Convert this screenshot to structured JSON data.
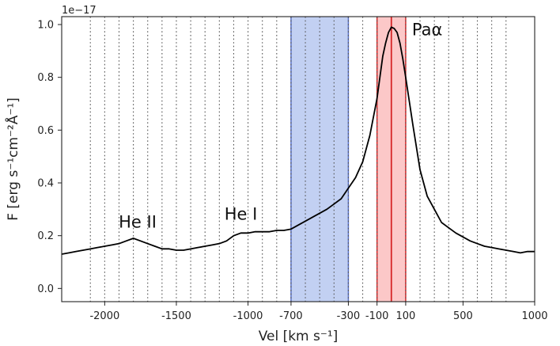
{
  "chart_data": {
    "type": "line",
    "xlabel": "Vel [km s⁻¹]",
    "ylabel": "F [erg s⁻¹cm⁻²Å⁻¹]",
    "offset_text": "1e−17",
    "xlim": [
      -2300,
      1000
    ],
    "ylim": [
      -0.05,
      1.03
    ],
    "x_ticks": [
      -2000,
      -1500,
      -1000,
      -700,
      -300,
      -100,
      100,
      500,
      1000
    ],
    "x_tick_labels": [
      "-2000",
      "-1500",
      "-1000",
      "-700",
      "-300",
      "-100",
      "100",
      "500",
      "1000"
    ],
    "y_ticks": [
      0.0,
      0.2,
      0.4,
      0.6,
      0.8,
      1.0
    ],
    "y_tick_labels": [
      "0.0",
      "0.2",
      "0.4",
      "0.6",
      "0.8",
      "1.0"
    ],
    "grid": "vertical dotted lines every 100 km/s from -2100 to 800",
    "grid_lines_x": [
      -2100,
      -2000,
      -1900,
      -1800,
      -1700,
      -1600,
      -1500,
      -1400,
      -1300,
      -1200,
      -1100,
      -1000,
      -900,
      -800,
      -700,
      -600,
      -500,
      -400,
      -300,
      -200,
      -100,
      0,
      100,
      200,
      300,
      400,
      500,
      600,
      700,
      800
    ],
    "shaded_regions": [
      {
        "x": [
          -700,
          -300
        ],
        "color": "#c2d0f2",
        "edge_color": "#5a72c8"
      },
      {
        "x": [
          -100,
          100
        ],
        "color": "#fcc8c8",
        "edge_color": "#d62728"
      }
    ],
    "center_line": {
      "x": 0,
      "color": "#d62728"
    },
    "annotations": [
      {
        "text": "He II",
        "x": -1770,
        "y": 0.23
      },
      {
        "text": "He I",
        "x": -1050,
        "y": 0.26
      },
      {
        "text": "Paα",
        "x": 250,
        "y": 0.96
      }
    ],
    "series": [
      {
        "color": "#000000",
        "x": [
          -2300,
          -2250,
          -2200,
          -2150,
          -2100,
          -2050,
          -2000,
          -1950,
          -1900,
          -1850,
          -1800,
          -1750,
          -1700,
          -1650,
          -1600,
          -1550,
          -1500,
          -1450,
          -1400,
          -1350,
          -1300,
          -1250,
          -1200,
          -1150,
          -1100,
          -1050,
          -1000,
          -950,
          -900,
          -850,
          -800,
          -750,
          -700,
          -650,
          -600,
          -550,
          -500,
          -450,
          -400,
          -350,
          -300,
          -250,
          -200,
          -150,
          -100,
          -80,
          -60,
          -40,
          -20,
          0,
          20,
          40,
          60,
          80,
          100,
          150,
          200,
          250,
          300,
          350,
          400,
          450,
          500,
          550,
          600,
          650,
          700,
          750,
          800,
          850,
          900,
          950,
          1000
        ],
        "y": [
          0.13,
          0.135,
          0.14,
          0.145,
          0.15,
          0.155,
          0.16,
          0.165,
          0.17,
          0.18,
          0.19,
          0.18,
          0.17,
          0.16,
          0.15,
          0.15,
          0.145,
          0.145,
          0.15,
          0.155,
          0.16,
          0.165,
          0.17,
          0.18,
          0.2,
          0.21,
          0.21,
          0.215,
          0.215,
          0.215,
          0.22,
          0.22,
          0.225,
          0.24,
          0.255,
          0.27,
          0.285,
          0.3,
          0.32,
          0.34,
          0.38,
          0.42,
          0.48,
          0.58,
          0.72,
          0.8,
          0.88,
          0.93,
          0.97,
          0.99,
          0.985,
          0.97,
          0.93,
          0.87,
          0.8,
          0.62,
          0.45,
          0.35,
          0.3,
          0.25,
          0.23,
          0.21,
          0.195,
          0.18,
          0.17,
          0.16,
          0.155,
          0.15,
          0.145,
          0.14,
          0.135,
          0.14,
          0.14
        ]
      }
    ]
  }
}
